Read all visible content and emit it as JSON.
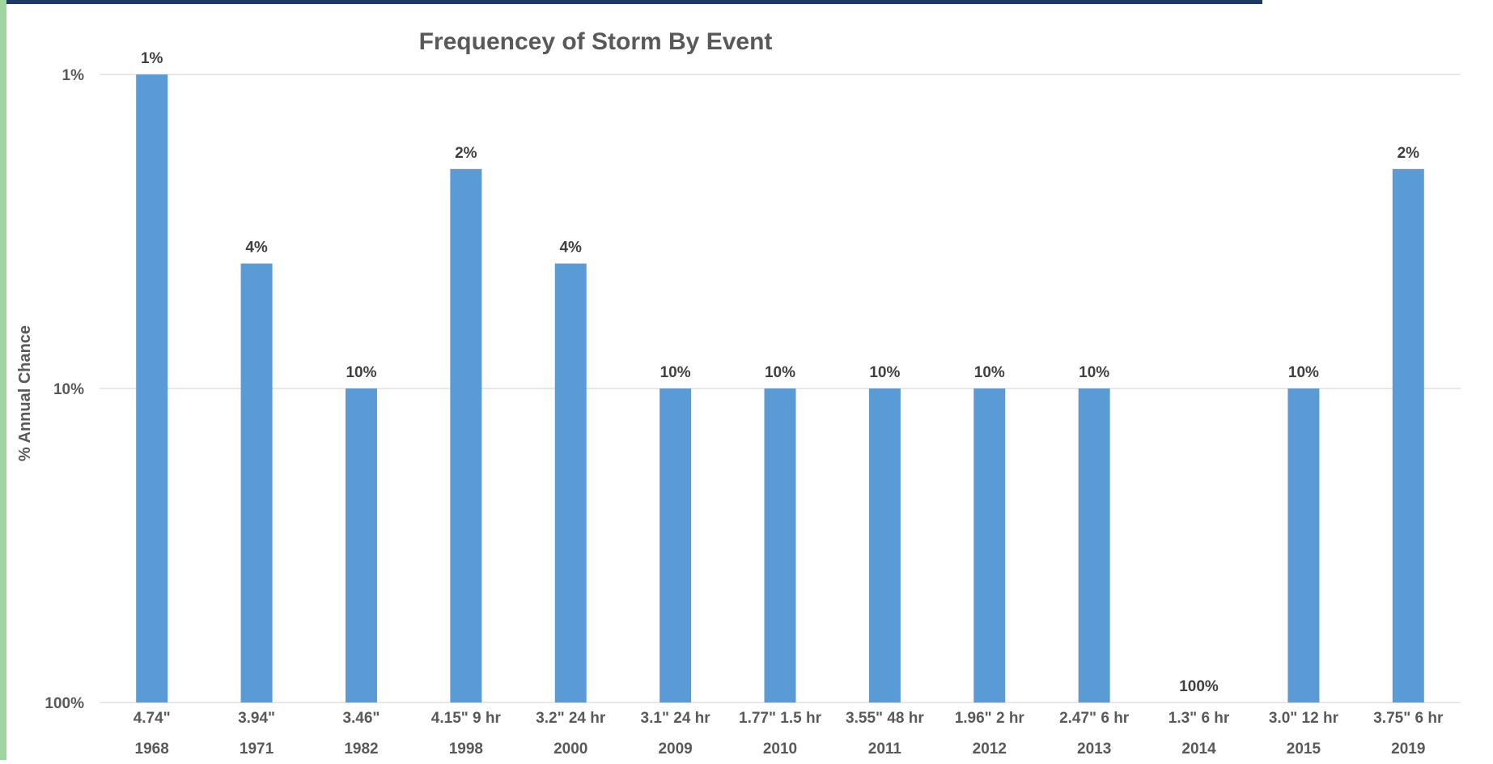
{
  "chart_data": {
    "type": "bar",
    "title": "Frequencey of Storm By Event",
    "xlabel": "",
    "ylabel": "% Annual Chance",
    "y_scale": "log",
    "y_axis_reversed": true,
    "ylim": [
      1,
      100
    ],
    "y_ticks": [
      {
        "value": 1,
        "label": "1%"
      },
      {
        "value": 10,
        "label": "10%"
      },
      {
        "value": 100,
        "label": "100%"
      }
    ],
    "grid": true,
    "legend": "none",
    "bar_color": "#5b9bd5",
    "categories": [
      {
        "event": "4.74\"",
        "year": "1968"
      },
      {
        "event": "3.94\"",
        "year": "1971"
      },
      {
        "event": "3.46\"",
        "year": "1982"
      },
      {
        "event": "4.15\" 9 hr",
        "year": "1998"
      },
      {
        "event": "3.2\" 24 hr",
        "year": "2000"
      },
      {
        "event": "3.1\" 24 hr",
        "year": "2009"
      },
      {
        "event": "1.77\" 1.5 hr",
        "year": "2010"
      },
      {
        "event": "3.55\" 48 hr",
        "year": "2011"
      },
      {
        "event": "1.96\" 2 hr",
        "year": "2012"
      },
      {
        "event": "2.47\" 6 hr",
        "year": "2013"
      },
      {
        "event": "1.3\" 6 hr",
        "year": "2014"
      },
      {
        "event": "3.0\" 12 hr",
        "year": "2015"
      },
      {
        "event": "3.75\" 6 hr",
        "year": "2019"
      }
    ],
    "values": [
      1,
      4,
      10,
      2,
      4,
      10,
      10,
      10,
      10,
      10,
      100,
      10,
      2
    ],
    "data_labels": [
      "1%",
      "4%",
      "10%",
      "2%",
      "4%",
      "10%",
      "10%",
      "10%",
      "10%",
      "10%",
      "100%",
      "10%",
      "2%"
    ]
  }
}
